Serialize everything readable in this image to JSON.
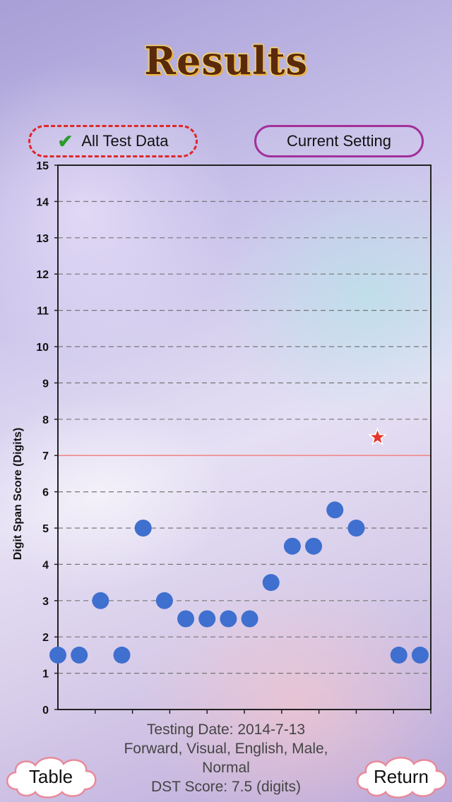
{
  "header": {
    "title": "Results"
  },
  "tabs": {
    "all_test_data": "All Test Data",
    "current_setting": "Current Setting",
    "check_glyph": "✔"
  },
  "chart_data": {
    "type": "scatter",
    "ylabel": "Digit Span Score (Digits)",
    "xlabel": "",
    "ylim": [
      0,
      15
    ],
    "yticks": [
      0,
      1,
      2,
      3,
      4,
      5,
      6,
      7,
      8,
      9,
      10,
      11,
      12,
      13,
      14,
      15
    ],
    "xlim": [
      0,
      17.5
    ],
    "grid": true,
    "reference_line": {
      "y": 7,
      "color": "#f08a8a"
    },
    "points": [
      {
        "x": 0,
        "y": 1.5
      },
      {
        "x": 1,
        "y": 1.5
      },
      {
        "x": 2,
        "y": 3
      },
      {
        "x": 3,
        "y": 1.5
      },
      {
        "x": 4,
        "y": 5
      },
      {
        "x": 5,
        "y": 3
      },
      {
        "x": 6,
        "y": 2.5
      },
      {
        "x": 7,
        "y": 2.5
      },
      {
        "x": 8,
        "y": 2.5
      },
      {
        "x": 9,
        "y": 2.5
      },
      {
        "x": 10,
        "y": 3.5
      },
      {
        "x": 11,
        "y": 4.5
      },
      {
        "x": 12,
        "y": 4.5
      },
      {
        "x": 13,
        "y": 5.5
      },
      {
        "x": 14,
        "y": 5
      },
      {
        "x": 16,
        "y": 1.5
      },
      {
        "x": 17,
        "y": 1.5
      }
    ],
    "highlight": {
      "x": 15,
      "y": 7.5,
      "marker": "star",
      "color": "#e8352a"
    },
    "point_color": "#3f6fcf"
  },
  "footer": {
    "line1": "Testing Date: 2014-7-13",
    "line2": "Forward, Visual, English, Male,",
    "line3": "Normal",
    "line4": "DST Score: 7.5 (digits)"
  },
  "buttons": {
    "table": "Table",
    "return": "Return"
  }
}
